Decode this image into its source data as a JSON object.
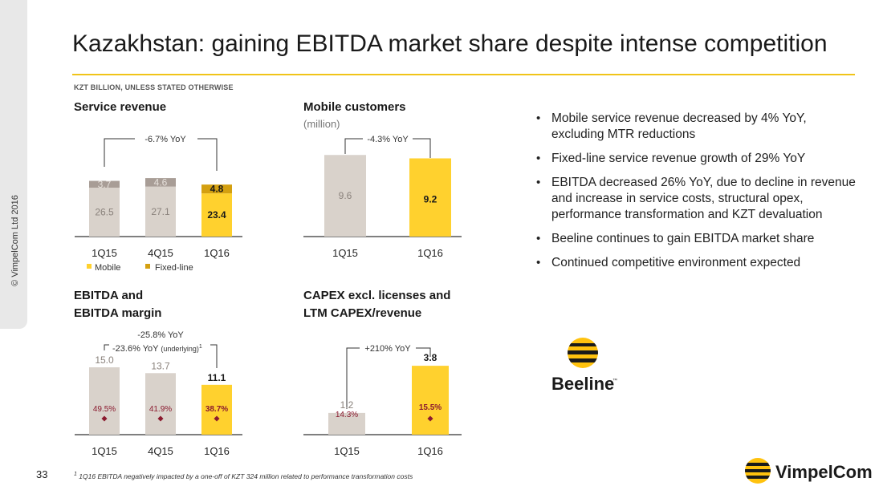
{
  "page": {
    "title": "Kazakhstan: gaining EBITDA market share despite intense competition",
    "subtitle": "KZT BILLION, UNLESS STATED OTHERWISE",
    "copyright": "© VimpelCom Ltd 2016",
    "page_number": "33",
    "footnote_sup": "1",
    "footnote": " 1Q16 EBITDA negatively impacted by a one-off of KZT 324 million related to performance transformation costs",
    "beeline_label": "Beeline",
    "beeline_tm": "™",
    "vimpelcom_label": "VimpelCom"
  },
  "colors": {
    "accent": "#FFD12E",
    "fixed": "#D4A010",
    "bar": "#D9D2CB",
    "fixed_grey": "#A89D96",
    "marker": "#8B1A2F",
    "rule": "#F0C419"
  },
  "bullets": [
    "Mobile service revenue decreased by 4% YoY, excluding MTR reductions",
    "Fixed-line service revenue growth of 29% YoY",
    "EBITDA decreased 26% YoY, due to decline in revenue and increase in service costs, structural opex, performance transformation and KZT devaluation",
    "Beeline continues to gain EBITDA market share",
    "Continued competitive environment expected"
  ],
  "chart_data": [
    {
      "type": "bar",
      "title": "Service revenue",
      "categories": [
        "1Q15",
        "4Q15",
        "1Q16"
      ],
      "series": [
        {
          "name": "Mobile",
          "values": [
            26.5,
            27.1,
            23.4
          ]
        },
        {
          "name": "Fixed-line",
          "values": [
            3.7,
            4.6,
            4.8
          ]
        }
      ],
      "labels": {
        "mobile": [
          "26.5",
          "27.1",
          "23.4"
        ],
        "fixed": [
          "3.7",
          "4.6",
          "4.8"
        ]
      },
      "annotation": "-6.7% YoY",
      "legend": [
        "Mobile",
        "Fixed-line"
      ]
    },
    {
      "type": "bar",
      "title": "Mobile customers",
      "subtitle": "(million)",
      "categories": [
        "1Q15",
        "1Q16"
      ],
      "values": [
        9.6,
        9.2
      ],
      "labels": [
        "9.6",
        "9.2"
      ],
      "annotation": "-4.3% YoY"
    },
    {
      "type": "bar",
      "title": "EBITDA and",
      "title2": "EBITDA margin",
      "categories": [
        "1Q15",
        "4Q15",
        "1Q16"
      ],
      "values": [
        15.0,
        13.7,
        11.1
      ],
      "labels": [
        "15.0",
        "13.7",
        "11.1"
      ],
      "margin": [
        "49.5%",
        "41.9%",
        "38.7%"
      ],
      "annotation1": "-25.8% YoY",
      "annotation2": "-23.6% YoY ",
      "annotation2b": "(underlying)",
      "annotation2sup": "1"
    },
    {
      "type": "bar",
      "title": "CAPEX excl. licenses and",
      "title2": "LTM CAPEX/revenue",
      "categories": [
        "1Q15",
        "1Q16"
      ],
      "values": [
        1.2,
        3.8
      ],
      "labels": [
        "1.2",
        "3.8"
      ],
      "ratio": [
        "14.3%",
        "15.5%"
      ],
      "annotation": "+210% YoY"
    }
  ]
}
